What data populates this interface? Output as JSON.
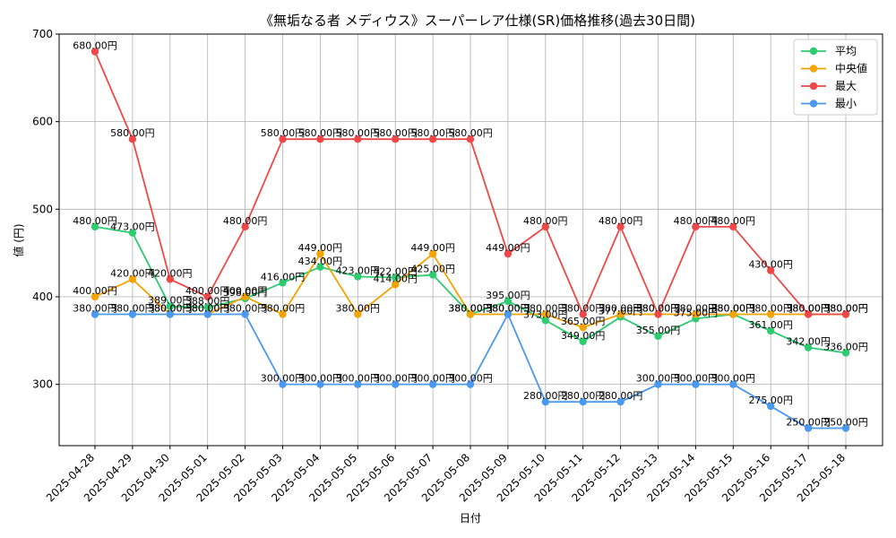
{
  "chart_data": {
    "type": "line",
    "title": "《無垢なる者 メディウス》スーパーレア仕様(SR)価格推移(過去30日間)",
    "xlabel": "日付",
    "ylabel": "値 (円)",
    "ylim": [
      230,
      700
    ],
    "yticks": [
      300,
      400,
      500,
      600,
      700
    ],
    "grid": true,
    "legend_position": "top-right",
    "value_suffix": "円",
    "categories": [
      "2025-04-28",
      "2025-04-29",
      "2025-04-30",
      "2025-05-01",
      "2025-05-02",
      "2025-05-03",
      "2025-05-04",
      "2025-05-05",
      "2025-05-06",
      "2025-05-07",
      "2025-05-08",
      "2025-05-09",
      "2025-05-10",
      "2025-05-11",
      "2025-05-12",
      "2025-05-13",
      "2025-05-14",
      "2025-05-15",
      "2025-05-16",
      "2025-05-17",
      "2025-05-18"
    ],
    "series": [
      {
        "name": "平均",
        "color": "#2ecc71",
        "values": [
          480,
          473,
          389,
          388,
          398,
          416,
          434,
          423,
          422,
          425,
          380,
          395,
          373,
          349,
          377,
          355,
          375,
          380,
          361,
          342,
          336
        ]
      },
      {
        "name": "中央値",
        "color": "#f5a300",
        "values": [
          400,
          420,
          380,
          380,
          400,
          380,
          449,
          380,
          414,
          449,
          380,
          380,
          380,
          365,
          380,
          380,
          380,
          380,
          380,
          380,
          380
        ]
      },
      {
        "name": "最大",
        "color": "#f04848",
        "values": [
          680,
          580,
          420,
          400,
          480,
          580,
          580,
          580,
          580,
          580,
          580,
          449,
          480,
          380,
          480,
          380,
          480,
          480,
          430,
          380,
          380
        ]
      },
      {
        "name": "最小",
        "color": "#4a98f0",
        "values": [
          380,
          380,
          380,
          380,
          380,
          300,
          300,
          300,
          300,
          300,
          300,
          380,
          280,
          280,
          280,
          300,
          300,
          300,
          275,
          250,
          250
        ]
      }
    ]
  }
}
